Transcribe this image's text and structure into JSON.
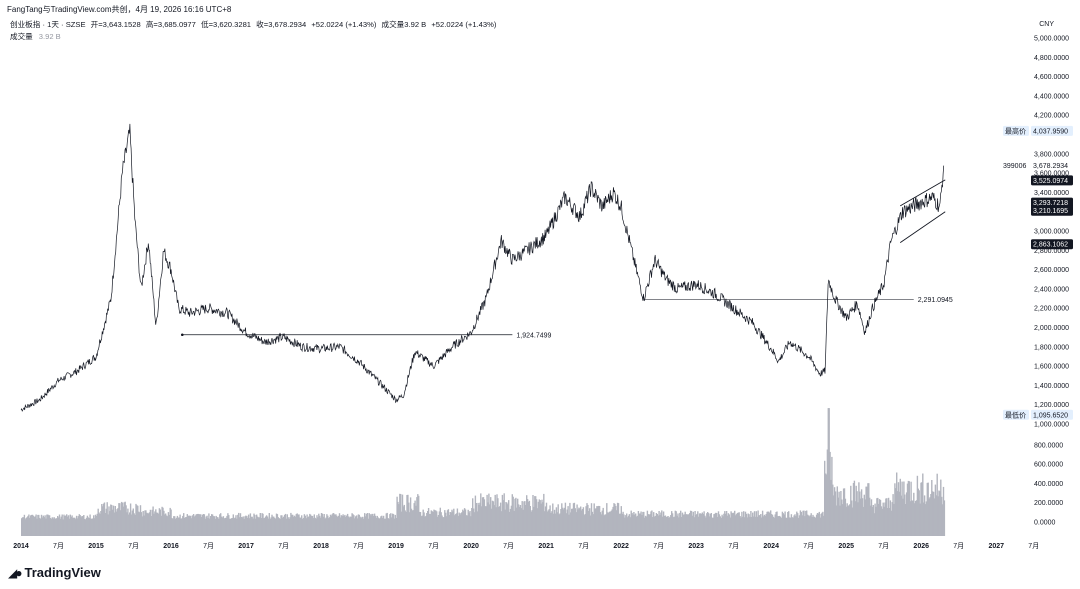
{
  "header": {
    "credit": "FangTang与TradingView.com共创，4月 19, 2026 16:16 UTC+8",
    "symbol": "创业板指 · 1天 · SZSE",
    "open": "开=3,643.1528",
    "high": "高=3,685.0977",
    "low": "低=3,620.3281",
    "close": "收=3,678.2934",
    "change": "+52.0224 (+1.43%)",
    "volume_text": "成交量3.92 B",
    "change2": "+52.0224 (+1.43%)",
    "volume_label": "成交量",
    "volume_value": "3.92 B"
  },
  "currency": "CNY",
  "brand": "TradingView",
  "colors": {
    "line": "#131722",
    "volume": "#b2b5be",
    "badge_dark": "#131722",
    "badge_light": "#e3effd",
    "grid": "#f0f3fa"
  },
  "annotations": {
    "high_label": "最高价",
    "high_value": "4,037.9590",
    "low_label": "最低价",
    "low_value": "1,095.6520",
    "symbol_code": "399006",
    "last_price": "3,678.2934",
    "badge1": "3,525.0974",
    "badge2": "3,293.7218",
    "badge3": "3,210.1695",
    "badge4": "2,863.1062",
    "hline1": "1,924.7499",
    "hline2": "2,291.0945"
  },
  "chart_data": {
    "type": "line",
    "price_ticks": [
      "5,000.0000",
      "4,800.0000",
      "4,600.0000",
      "4,400.0000",
      "4,200.0000",
      "3,800.0000",
      "3,600.0000",
      "3,400.0000",
      "3,200.0000",
      "3,000.0000",
      "2,800.0000",
      "2,600.0000",
      "2,400.0000",
      "2,200.0000",
      "2,000.0000",
      "1,800.0000",
      "1,600.0000",
      "1,400.0000",
      "1,200.0000",
      "1,000.0000",
      "800.0000",
      "600.0000",
      "400.0000",
      "200.0000",
      "0.0000"
    ],
    "time_ticks": [
      "2014",
      "7月",
      "2015",
      "7月",
      "2016",
      "7月",
      "2017",
      "7月",
      "2018",
      "7月",
      "2019",
      "7月",
      "2020",
      "7月",
      "2021",
      "7月",
      "2022",
      "7月",
      "2023",
      "7月",
      "2024",
      "7月",
      "2025",
      "7月",
      "2026",
      "7月",
      "2027",
      "7月"
    ],
    "series": [
      {
        "x": [
          2014.0,
          2014.25,
          2014.5,
          2014.75,
          2015.0,
          2015.2,
          2015.35,
          2015.45,
          2015.52,
          2015.6,
          2015.7,
          2015.8,
          2015.9,
          2016.0,
          2016.1,
          2016.25,
          2016.5,
          2016.75,
          2017.0,
          2017.25,
          2017.5,
          2017.75,
          2018.0,
          2018.25,
          2018.5,
          2018.75,
          2019.0,
          2019.1,
          2019.25,
          2019.5,
          2019.75,
          2020.0,
          2020.2,
          2020.4,
          2020.55,
          2020.75,
          2021.0,
          2021.25,
          2021.45,
          2021.6,
          2021.75,
          2021.9,
          2022.0,
          2022.2,
          2022.3,
          2022.45,
          2022.6,
          2022.75,
          2023.0,
          2023.25,
          2023.5,
          2023.75,
          2024.0,
          2024.1,
          2024.25,
          2024.5,
          2024.65,
          2024.72,
          2024.76,
          2024.85,
          2025.0,
          2025.15,
          2025.25,
          2025.35,
          2025.5,
          2025.6,
          2025.75,
          2026.0,
          2026.15,
          2026.25,
          2026.3
        ],
        "values": [
          1150,
          1250,
          1450,
          1550,
          1700,
          2300,
          3600,
          4030,
          3100,
          2400,
          2900,
          2000,
          2800,
          2600,
          2200,
          2150,
          2200,
          2150,
          1950,
          1850,
          1900,
          1800,
          1780,
          1800,
          1650,
          1450,
          1250,
          1300,
          1750,
          1600,
          1800,
          1950,
          2300,
          2900,
          2700,
          2800,
          2950,
          3350,
          3150,
          3450,
          3250,
          3400,
          3250,
          2600,
          2300,
          2700,
          2500,
          2400,
          2450,
          2350,
          2200,
          2050,
          1780,
          1650,
          1850,
          1700,
          1520,
          1550,
          2500,
          2300,
          2100,
          2250,
          1950,
          2200,
          2450,
          2900,
          3200,
          3300,
          3350,
          3250,
          3678
        ]
      }
    ],
    "volume": {
      "name": "成交量",
      "last": "3.92 B"
    }
  }
}
